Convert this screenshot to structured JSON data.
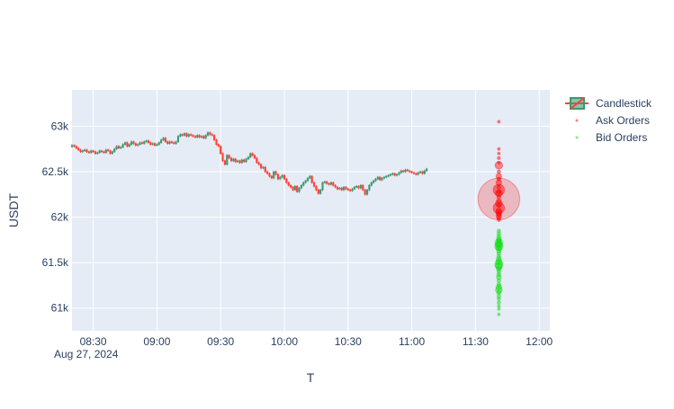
{
  "chart_data": {
    "type": "candlestick",
    "xlabel": "T",
    "ylabel": "USDT",
    "x_tick_labels": [
      "08:30",
      "09:00",
      "09:30",
      "10:00",
      "10:30",
      "11:00",
      "11:30",
      "12:00"
    ],
    "x_date_label": "Aug 27, 2024",
    "xlim": [
      "2024-08-27 08:20",
      "2024-08-27 12:05"
    ],
    "y_tick_labels": [
      "61k",
      "61.5k",
      "62k",
      "62.5k",
      "63k"
    ],
    "ylim": [
      60750,
      63400
    ],
    "colors": {
      "increasing": "#3d9970",
      "decreasing": "#ff4136",
      "plot_bg": "#e5ecf6",
      "grid": "#ffffff",
      "ask": "#ff0000",
      "bid": "#00dd00",
      "axis_text": "#2a3f5f"
    },
    "legend": {
      "placement": "top-right",
      "entries": [
        "Candlestick",
        "Ask Orders",
        "Bid Orders"
      ]
    },
    "series": [
      {
        "name": "Candlestick",
        "type": "candlestick",
        "start": "2024-08-27 08:20",
        "interval_minutes": 1,
        "close": [
          62790,
          62780,
          62760,
          62740,
          62720,
          62730,
          62740,
          62720,
          62710,
          62730,
          62720,
          62700,
          62710,
          62730,
          62720,
          62710,
          62740,
          62730,
          62700,
          62720,
          62750,
          62780,
          62760,
          62770,
          62800,
          62820,
          62780,
          62800,
          62830,
          62810,
          62790,
          62800,
          62820,
          62810,
          62830,
          62840,
          62820,
          62800,
          62810,
          62790,
          62800,
          62820,
          62850,
          62870,
          62830,
          62810,
          62830,
          62820,
          62810,
          62830,
          62890,
          62910,
          62900,
          62920,
          62890,
          62910,
          62900,
          62890,
          62880,
          62900,
          62880,
          62890,
          62870,
          62900,
          62930,
          62910,
          62900,
          62850,
          62800,
          62780,
          62700,
          62620,
          62580,
          62680,
          62650,
          62620,
          62640,
          62610,
          62620,
          62600,
          62630,
          62610,
          62640,
          62660,
          62700,
          62680,
          62650,
          62600,
          62580,
          62540,
          62550,
          62500,
          62480,
          62450,
          62430,
          62500,
          62470,
          62420,
          62440,
          62460,
          62420,
          62380,
          62350,
          62330,
          62300,
          62340,
          62280,
          62320,
          62350,
          62380,
          62400,
          62430,
          62450,
          62380,
          62340,
          62300,
          62260,
          62300,
          62380,
          62390,
          62370,
          62360,
          62380,
          62350,
          62330,
          62310,
          62320,
          62300,
          62330,
          62310,
          62300,
          62290,
          62310,
          62330,
          62340,
          62320,
          62350,
          62300,
          62250,
          62300,
          62350,
          62380,
          62400,
          62420,
          62440,
          62410,
          62430,
          62440,
          62450,
          62460,
          62470,
          62480,
          62460,
          62470,
          62490,
          62510,
          62500,
          62520,
          62510,
          62500,
          62490,
          62480,
          62470,
          62490,
          62500,
          62480,
          62510,
          62530
        ]
      },
      {
        "name": "Ask Orders",
        "type": "scatter",
        "time": "2024-08-27 11:41",
        "prices": [
          63050,
          62750,
          62700,
          62650,
          62600,
          62570,
          62500,
          62450,
          62420,
          62380,
          62330,
          62300,
          62280,
          62260,
          62220,
          62200,
          62180,
          62150,
          62130,
          62100,
          62070,
          62050,
          62030,
          62010,
          61990,
          61970
        ],
        "sizes": [
          0.5,
          0.6,
          0.6,
          0.8,
          0.7,
          2,
          0.9,
          1.5,
          1,
          1.5,
          1,
          3,
          1.2,
          1.8,
          1,
          11,
          1.2,
          1.8,
          1,
          3,
          1.5,
          1.6,
          1.2,
          1.4,
          1,
          0.9
        ]
      },
      {
        "name": "Bid Orders",
        "type": "scatter",
        "time": "2024-08-27 11:41",
        "prices": [
          61850,
          61820,
          61790,
          61760,
          61740,
          61720,
          61700,
          61680,
          61660,
          61630,
          61600,
          61570,
          61540,
          61510,
          61480,
          61460,
          61430,
          61400,
          61370,
          61340,
          61300,
          61260,
          61230,
          61200,
          61170,
          61130,
          61100,
          61060,
          61020,
          60990,
          60930
        ],
        "sizes": [
          0.9,
          1,
          1,
          1.3,
          1.2,
          2,
          1.8,
          2.2,
          1.5,
          1.2,
          1,
          1,
          1.3,
          1.6,
          2.2,
          1.8,
          1.2,
          1,
          1,
          1.3,
          1,
          1,
          1.5,
          1.8,
          1.1,
          1,
          0.9,
          0.9,
          0.8,
          0.7,
          0.5
        ]
      }
    ]
  }
}
